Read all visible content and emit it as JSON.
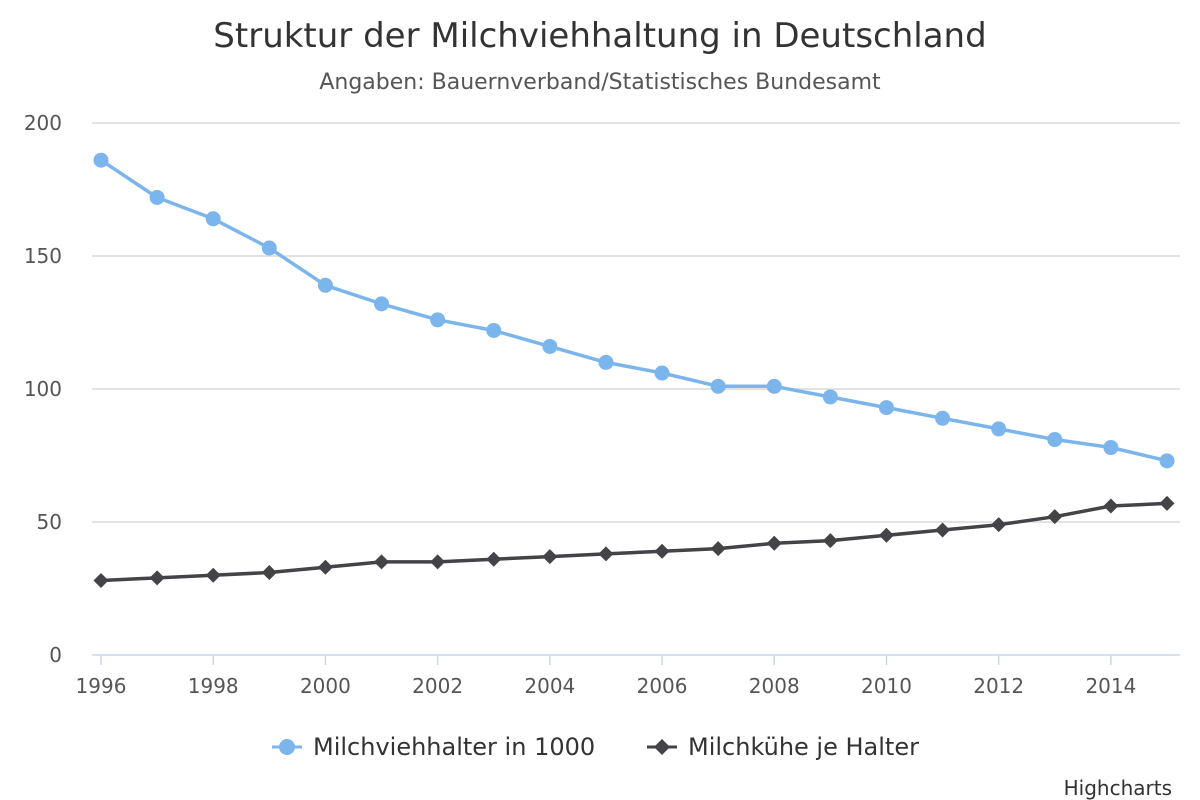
{
  "chart_data": {
    "type": "line",
    "title": "Struktur der Milchviehhaltung in Deutschland",
    "subtitle": "Angaben: Bauernverband/Statistisches Bundesamt",
    "xlabel": "",
    "ylabel": "",
    "x": [
      1996,
      1997,
      1998,
      1999,
      2000,
      2001,
      2002,
      2003,
      2004,
      2005,
      2006,
      2007,
      2008,
      2009,
      2010,
      2011,
      2012,
      2013,
      2014,
      2015
    ],
    "xlim": [
      1996,
      2015
    ],
    "ylim": [
      0,
      200
    ],
    "x_ticks": [
      1996,
      1998,
      2000,
      2002,
      2004,
      2006,
      2008,
      2010,
      2012,
      2014
    ],
    "y_ticks": [
      0,
      50,
      100,
      150,
      200
    ],
    "grid": "horizontal",
    "legend_position": "bottom-center",
    "series": [
      {
        "name": "Milchviehhalter in 1000",
        "color": "#7cb5ec",
        "marker": "circle",
        "values": [
          186,
          172,
          164,
          153,
          139,
          132,
          126,
          122,
          116,
          110,
          106,
          101,
          101,
          97,
          93,
          89,
          85,
          81,
          78,
          73
        ]
      },
      {
        "name": "Milchkühe je Halter",
        "color": "#434348",
        "marker": "diamond",
        "values": [
          28,
          29,
          30,
          31,
          33,
          35,
          35,
          36,
          37,
          38,
          39,
          40,
          42,
          43,
          45,
          47,
          49,
          52,
          56,
          57
        ]
      }
    ]
  },
  "credits": "Highcharts"
}
